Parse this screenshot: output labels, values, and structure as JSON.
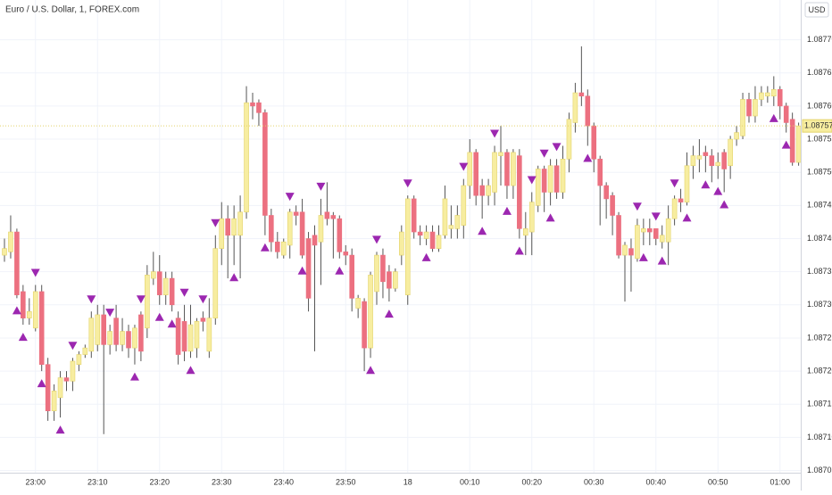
{
  "chart_data": {
    "type": "candlestick",
    "title": "Euro / U.S. Dollar, 1, FOREX.com",
    "currency": "USD",
    "up_color": "#f7eda0",
    "up_border": "#e3d36a",
    "down_color": "#ec7080",
    "wick_color": "#555555",
    "signal_color": "#9c27b0",
    "grid": true,
    "ylim": [
      1.08704,
      1.08776
    ],
    "yticks": [
      1.08705,
      {
        "value": 1.0871,
        "label": "1.08710"
      },
      1.08715,
      {
        "value": 1.0872,
        "label": "1.08720"
      },
      1.08725,
      {
        "value": 1.0873,
        "label": "1.08730"
      },
      1.08735,
      {
        "value": 1.0874,
        "label": "1.08740"
      },
      1.08745,
      {
        "value": 1.0875,
        "label": "1.08750"
      },
      1.08755,
      {
        "value": 1.0876,
        "label": "1.08760"
      },
      1.08765,
      {
        "value": 1.0877,
        "label": "1.08770"
      }
    ],
    "last_price": {
      "value": 1.08757,
      "label": "1.08757"
    },
    "categories": [
      null,
      null,
      null,
      null,
      null,
      "23:00",
      null,
      null,
      null,
      null,
      null,
      null,
      null,
      null,
      null,
      "23:10",
      null,
      null,
      null,
      null,
      null,
      null,
      null,
      null,
      null,
      "23:20",
      null,
      null,
      null,
      null,
      null,
      null,
      null,
      null,
      null,
      "23:30",
      null,
      null,
      null,
      null,
      null,
      null,
      null,
      null,
      null,
      "23:40",
      null,
      null,
      null,
      null,
      null,
      null,
      null,
      null,
      null,
      "23:50",
      null,
      null,
      null,
      null,
      null,
      null,
      null,
      null,
      null,
      "18",
      null,
      null,
      null,
      null,
      null,
      null,
      null,
      null,
      null,
      "00:10",
      null,
      null,
      null,
      null,
      null,
      null,
      null,
      null,
      null,
      "00:20",
      null,
      null,
      null,
      null,
      null,
      null,
      null,
      null,
      null,
      "00:30",
      null,
      null,
      null,
      null,
      null,
      null,
      null,
      null,
      null,
      "00:40",
      null,
      null,
      null,
      null,
      null,
      null,
      null,
      null,
      null,
      "00:50",
      null,
      null,
      null,
      null,
      null,
      null,
      null,
      null,
      null,
      "01:00",
      null,
      null,
      null
    ],
    "open": [
      1.087375,
      1.08738,
      1.08741,
      1.08732,
      1.08728,
      1.087265,
      1.08732,
      1.08721,
      1.08714,
      1.08716,
      1.08719,
      1.087185,
      1.08721,
      1.087225,
      1.08723,
      1.08724,
      1.087285,
      1.08724,
      1.08728,
      1.08724,
      1.08726,
      1.087235,
      1.087285,
      1.087265,
      1.08734,
      1.08735,
      1.087315,
      1.08734,
      1.08728,
      1.087275,
      1.08723,
      1.087235,
      1.08728,
      1.08723,
      1.08728,
      1.087385,
      1.08743,
      1.087405,
      1.087405,
      1.08744,
      1.087605,
      1.087605,
      1.08759,
      1.087435,
      1.087395,
      1.087375,
      1.08739,
      1.08744,
      1.08744,
      1.0874,
      1.087405,
      1.087395,
      1.08744,
      1.087435,
      1.08743,
      1.08738,
      1.087375,
      1.087295,
      1.087305,
      1.087235,
      1.08732,
      1.087375,
      1.08735,
      1.087325,
      1.087375,
      1.087315,
      1.08746,
      1.08741,
      1.0874,
      1.08741,
      1.087385,
      1.087405,
      1.087415,
      1.087415,
      1.08742,
      1.08748,
      1.08753,
      1.08748,
      1.087465,
      1.08747,
      1.087525,
      1.08753,
      1.08748,
      1.087525,
      1.087405,
      1.08741,
      1.08745,
      1.087505,
      1.08747,
      1.08751,
      1.08747,
      1.08752,
      1.087575,
      1.08762,
      1.087615,
      1.08757,
      1.08752,
      1.08748,
      1.087465,
      1.087435,
      1.087375,
      1.087385,
      1.08737,
      1.08741,
      1.087415,
      1.087415,
      1.087395,
      1.087395,
      1.08743,
      1.08746,
      1.087455,
      1.08751,
      1.08752,
      1.08753,
      1.087525,
      1.08751,
      1.08753,
      1.08751,
      1.08755,
      1.087555,
      1.08761,
      1.087585,
      1.08761,
      1.087615,
      1.087615,
      1.087625,
      1.0876,
      1.08758,
      1.087515
    ],
    "high": [
      1.0874,
      1.087435,
      1.087415,
      1.08733,
      1.08731,
      1.08733,
      1.08733,
      1.08722,
      1.08718,
      1.0872,
      1.0872,
      1.08722,
      1.08723,
      1.08724,
      1.08729,
      1.0873,
      1.0873,
      1.08727,
      1.0873,
      1.08728,
      1.08727,
      1.08727,
      1.08729,
      1.08736,
      1.08738,
      1.087375,
      1.08735,
      1.08735,
      1.08729,
      1.0873,
      1.0873,
      1.08728,
      1.08729,
      1.08731,
      1.087405,
      1.087455,
      1.08745,
      1.08745,
      1.087465,
      1.08763,
      1.08762,
      1.08761,
      1.087595,
      1.087445,
      1.08741,
      1.0874,
      1.087445,
      1.08745,
      1.08746,
      1.08741,
      1.08742,
      1.08746,
      1.087485,
      1.08744,
      1.087435,
      1.08739,
      1.087385,
      1.087315,
      1.08731,
      1.08735,
      1.08738,
      1.087385,
      1.08736,
      1.087355,
      1.08742,
      1.087465,
      1.087465,
      1.08742,
      1.08742,
      1.08742,
      1.08742,
      1.08748,
      1.08745,
      1.08745,
      1.08749,
      1.08755,
      1.087535,
      1.08749,
      1.08749,
      1.08754,
      1.08757,
      1.087535,
      1.087535,
      1.087535,
      1.08744,
      1.08747,
      1.08751,
      1.08751,
      1.08752,
      1.08752,
      1.08754,
      1.08759,
      1.087635,
      1.08769,
      1.087625,
      1.087575,
      1.087525,
      1.087485,
      1.08747,
      1.08744,
      1.087395,
      1.0874,
      1.08743,
      1.08743,
      1.08743,
      1.087415,
      1.08742,
      1.08745,
      1.087465,
      1.087475,
      1.08753,
      1.08754,
      1.08755,
      1.08754,
      1.087535,
      1.08753,
      1.087535,
      1.087555,
      1.08757,
      1.08762,
      1.08762,
      1.08763,
      1.08763,
      1.08763,
      1.087645,
      1.08763,
      1.087605,
      1.08759,
      1.087575
    ],
    "low": [
      1.087365,
      1.08737,
      1.08731,
      1.08727,
      1.08727,
      1.08726,
      1.0872,
      1.087125,
      1.087125,
      1.08713,
      1.08717,
      1.08717,
      1.0872,
      1.08722,
      1.08722,
      1.08723,
      1.087105,
      1.087225,
      1.08723,
      1.08723,
      1.08722,
      1.08721,
      1.087215,
      1.08725,
      1.08733,
      1.0873,
      1.0873,
      1.08729,
      1.08721,
      1.087215,
      1.08722,
      1.08722,
      1.08726,
      1.08722,
      1.08727,
      1.08736,
      1.08734,
      1.08736,
      1.08734,
      1.08743,
      1.08758,
      1.08757,
      1.087405,
      1.08738,
      1.08737,
      1.08737,
      1.08737,
      1.08742,
      1.08737,
      1.08729,
      1.08723,
      1.08733,
      1.08742,
      1.08737,
      1.08737,
      1.08736,
      1.08729,
      1.08728,
      1.0872,
      1.08722,
      1.0873,
      1.08731,
      1.087305,
      1.08732,
      1.08736,
      1.0873,
      1.0874,
      1.08739,
      1.08739,
      1.08738,
      1.08738,
      1.0874,
      1.0874,
      1.0874,
      1.0874,
      1.08746,
      1.08745,
      1.08743,
      1.08745,
      1.08745,
      1.08748,
      1.08746,
      1.08746,
      1.0874,
      1.087375,
      1.087375,
      1.08744,
      1.08744,
      1.08745,
      1.08746,
      1.08746,
      1.0875,
      1.08756,
      1.0876,
      1.08754,
      1.0875,
      1.08742,
      1.08743,
      1.087405,
      1.08737,
      1.087305,
      1.08732,
      1.087365,
      1.08739,
      1.08739,
      1.08739,
      1.087385,
      1.08736,
      1.08742,
      1.08744,
      1.08745,
      1.08749,
      1.0875,
      1.0875,
      1.087485,
      1.08749,
      1.08747,
      1.08749,
      1.08754,
      1.08755,
      1.087575,
      1.087575,
      1.0876,
      1.087605,
      1.0876,
      1.08758,
      1.08756,
      1.08751,
      1.08751
    ],
    "close": [
      1.087385,
      1.08741,
      1.087315,
      1.08728,
      1.08729,
      1.08732,
      1.08721,
      1.08714,
      1.08717,
      1.08719,
      1.087185,
      1.087215,
      1.087225,
      1.087235,
      1.08728,
      1.087285,
      1.08724,
      1.08726,
      1.08724,
      1.08726,
      1.087235,
      1.087265,
      1.08723,
      1.087345,
      1.08735,
      1.087315,
      1.08734,
      1.0873,
      1.087225,
      1.08723,
      1.08727,
      1.087275,
      1.087275,
      1.08728,
      1.087385,
      1.08743,
      1.087405,
      1.08743,
      1.08744,
      1.087605,
      1.0876,
      1.08759,
      1.087435,
      1.087395,
      1.08738,
      1.087395,
      1.08744,
      1.087435,
      1.087375,
      1.08731,
      1.08739,
      1.087435,
      1.08743,
      1.08743,
      1.08738,
      1.087375,
      1.08731,
      1.08731,
      1.087235,
      1.087345,
      1.087375,
      1.087335,
      1.087325,
      1.08735,
      1.08741,
      1.08746,
      1.08741,
      1.087405,
      1.08741,
      1.087385,
      1.087405,
      1.08746,
      1.08742,
      1.087435,
      1.08748,
      1.08753,
      1.087465,
      1.087465,
      1.08748,
      1.08753,
      1.08753,
      1.08748,
      1.08753,
      1.087415,
      1.087415,
      1.087455,
      1.087505,
      1.08747,
      1.08751,
      1.08747,
      1.08752,
      1.08758,
      1.08762,
      1.087615,
      1.08757,
      1.08752,
      1.08748,
      1.08746,
      1.087435,
      1.087375,
      1.08739,
      1.087375,
      1.08742,
      1.087415,
      1.08741,
      1.0874,
      1.087405,
      1.08743,
      1.08746,
      1.087455,
      1.08751,
      1.087525,
      1.087525,
      1.087525,
      1.08751,
      1.087515,
      1.087505,
      1.08755,
      1.08756,
      1.08761,
      1.087585,
      1.08761,
      1.08762,
      1.08762,
      1.087625,
      1.0876,
      1.087575,
      1.087515,
      1.08757
    ],
    "signals_up": [
      2,
      3,
      6,
      9,
      21,
      25,
      27,
      30,
      37,
      42,
      48,
      54,
      59,
      62,
      68,
      77,
      81,
      83,
      88,
      94,
      103,
      106,
      110,
      113,
      115,
      116,
      124,
      126
    ],
    "signals_down": [
      5,
      11,
      14,
      17,
      22,
      29,
      32,
      34,
      46,
      51,
      60,
      65,
      74,
      79,
      85,
      87,
      89,
      102,
      105,
      108
    ]
  }
}
